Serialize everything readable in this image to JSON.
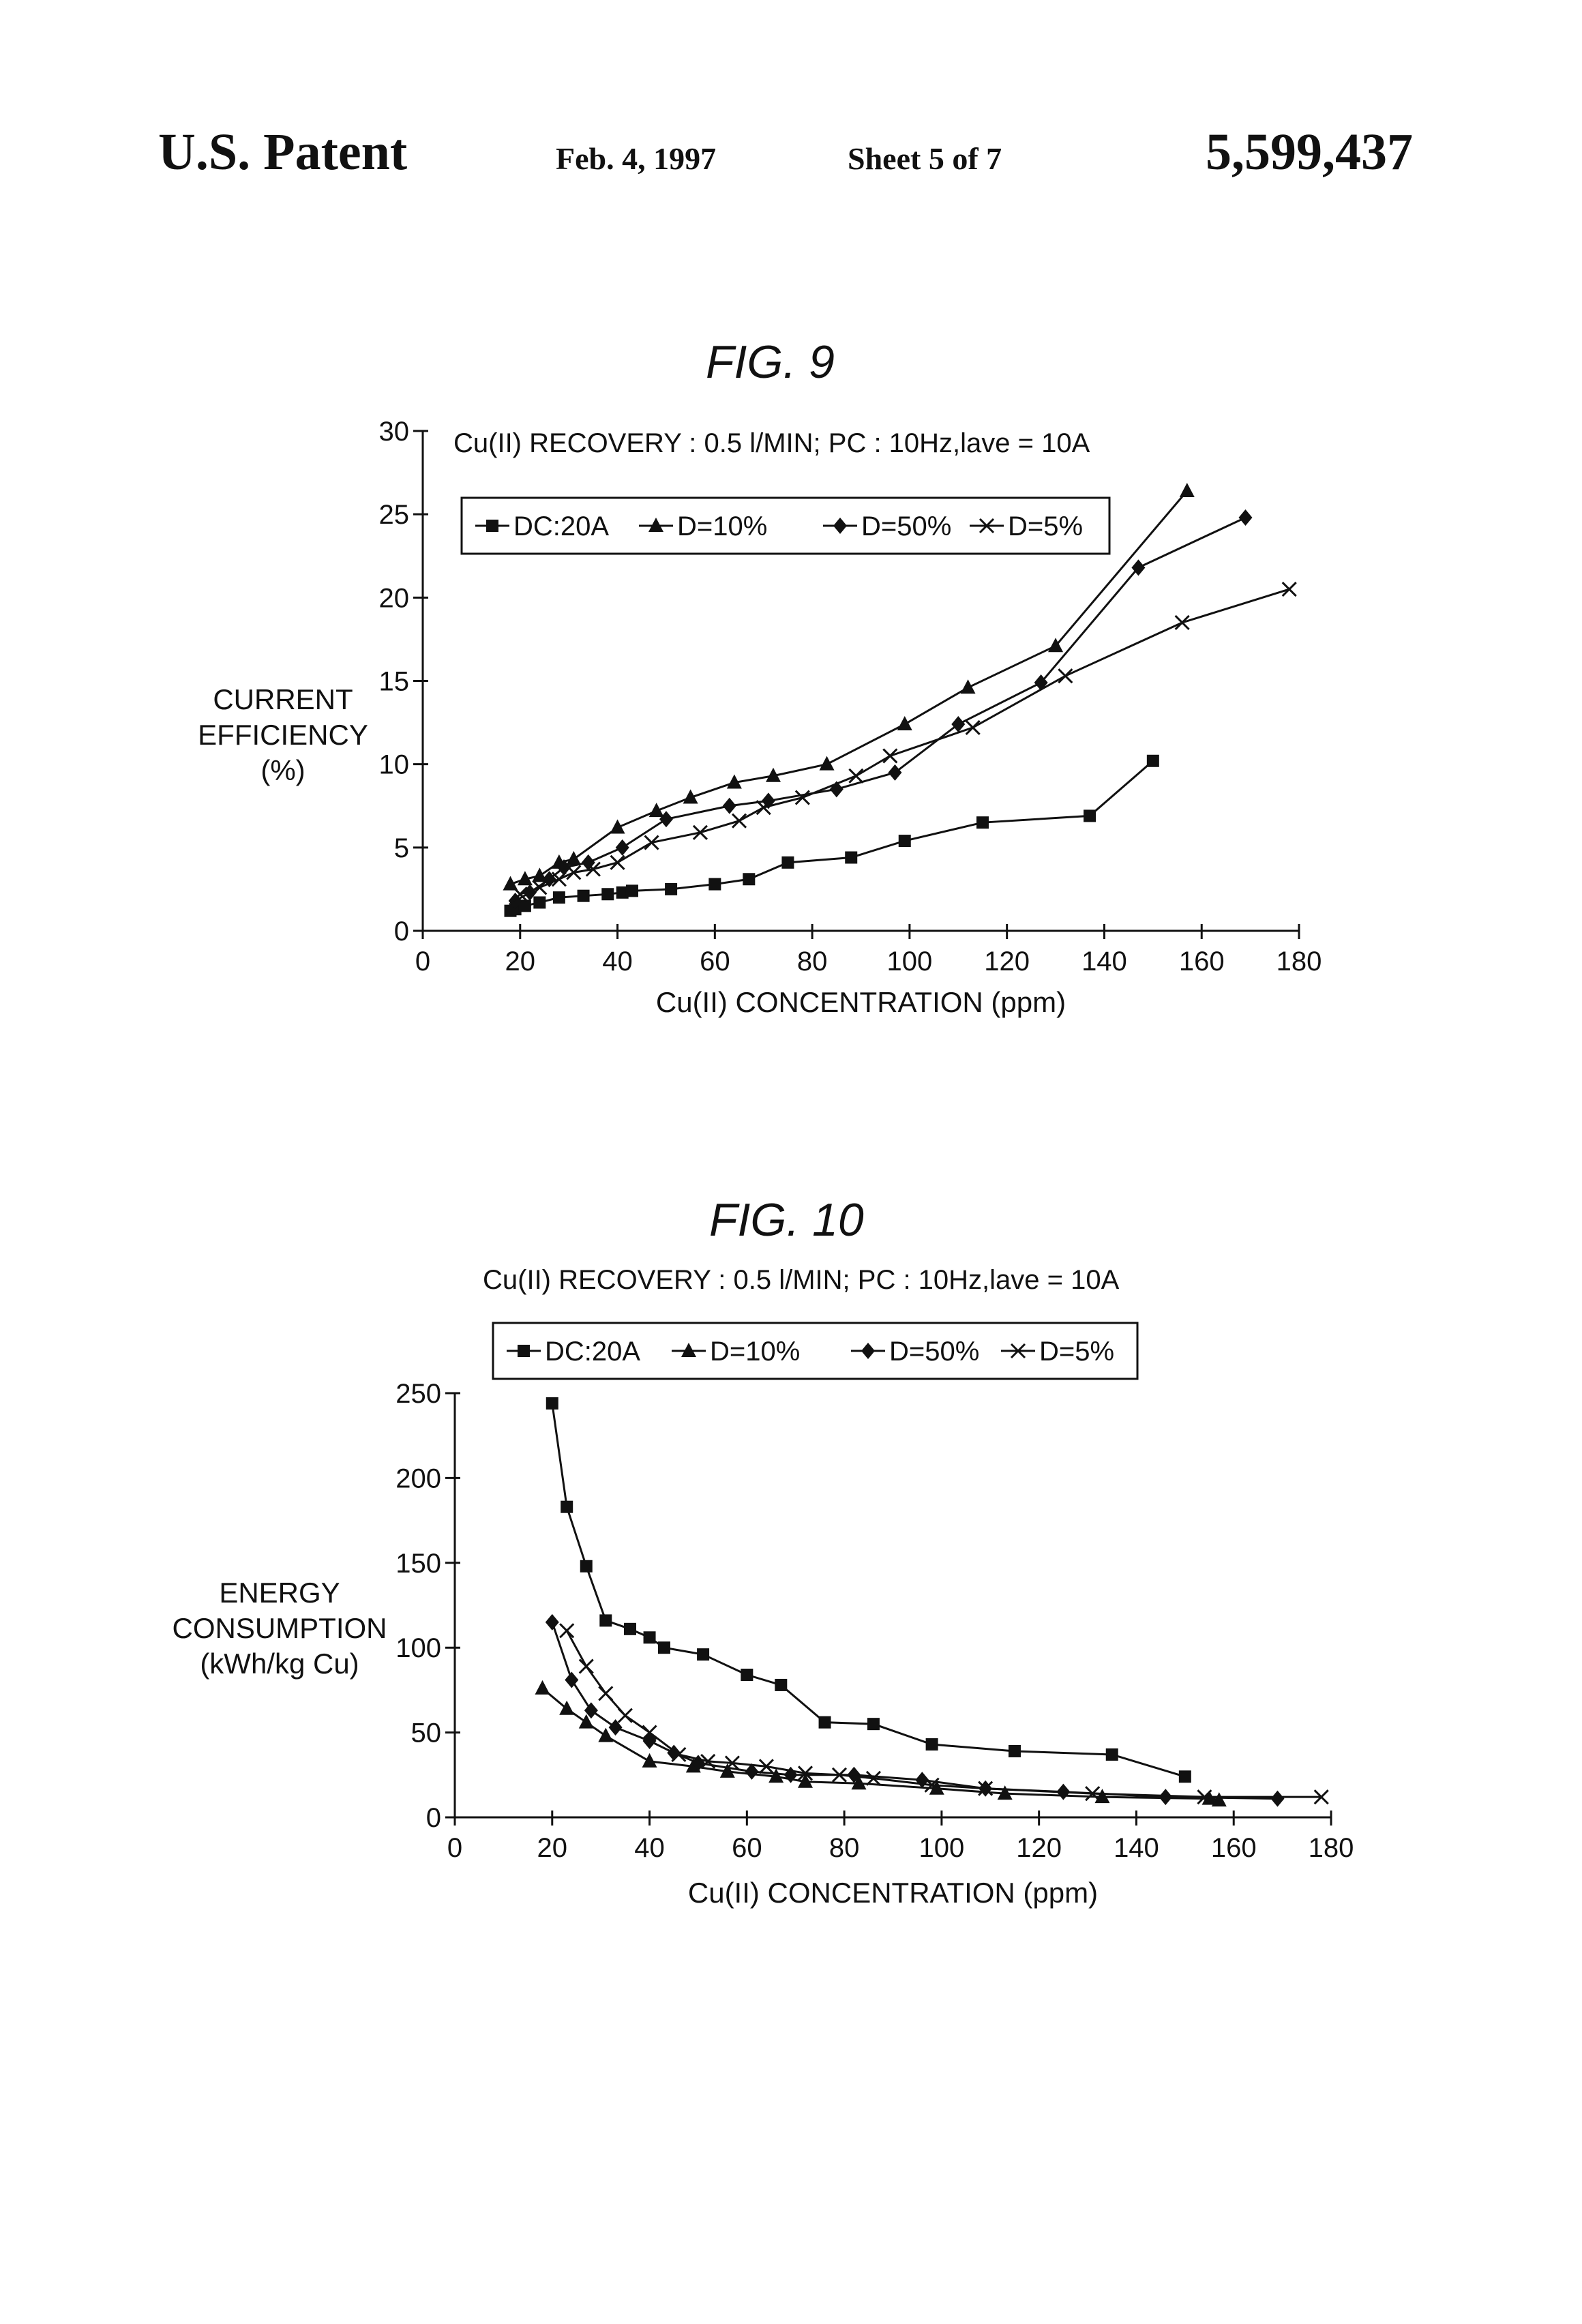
{
  "header": {
    "left": "U.S. Patent",
    "date": "Feb. 4, 1997",
    "sheet": "Sheet 5 of 7",
    "number": "5,599,437"
  },
  "figures": [
    {
      "label": "FIG. 9",
      "subtitle": "Cu(II) RECOVERY : 0.5 l/MIN; PC : 10Hz,lave = 10A",
      "ylabel_lines": [
        "CURRENT",
        "EFFICIENCY",
        "(%)"
      ],
      "xlabel": "Cu(II) CONCENTRATION (ppm)"
    },
    {
      "label": "FIG. 10",
      "subtitle": "Cu(II) RECOVERY : 0.5 l/MIN; PC : 10Hz,lave = 10A",
      "ylabel_lines": [
        "ENERGY",
        "CONSUMPTION",
        "(kWh/kg Cu)"
      ],
      "xlabel": "Cu(II) CONCENTRATION (ppm)"
    }
  ],
  "chart_data": [
    {
      "type": "line",
      "title": "FIG. 9",
      "subtitle": "Cu(II) RECOVERY : 0.5 l/MIN; PC : 10Hz,lave = 10A",
      "xlabel": "Cu(II) CONCENTRATION (ppm)",
      "ylabel": "CURRENT EFFICIENCY (%)",
      "xlim": [
        0,
        180
      ],
      "ylim": [
        0,
        30
      ],
      "xticks": [
        0,
        20,
        40,
        60,
        80,
        100,
        120,
        140,
        160,
        180
      ],
      "yticks": [
        0,
        5,
        10,
        15,
        20,
        25,
        30
      ],
      "legend": "top",
      "series": [
        {
          "name": "DC:20A",
          "marker": "square",
          "x": [
            18,
            19,
            21,
            24,
            28,
            33,
            38,
            41,
            43,
            51,
            60,
            67,
            75,
            88,
            99,
            115,
            137,
            150
          ],
          "y": [
            1.2,
            1.3,
            1.5,
            1.7,
            2,
            2.1,
            2.2,
            2.3,
            2.4,
            2.5,
            2.8,
            3.1,
            4.1,
            4.4,
            5.4,
            6.5,
            6.9,
            10.2
          ]
        },
        {
          "name": "D=10%",
          "marker": "triangle",
          "x": [
            18,
            21,
            24,
            28,
            31,
            40,
            48,
            55,
            64,
            72,
            83,
            99,
            112,
            130,
            157
          ],
          "y": [
            2.8,
            3.1,
            3.3,
            4.1,
            4.3,
            6.2,
            7.2,
            8,
            8.9,
            9.3,
            10,
            12.4,
            14.6,
            17.1,
            26.4
          ]
        },
        {
          "name": "D=50%",
          "marker": "diamond",
          "x": [
            19,
            22,
            26,
            29,
            34,
            41,
            50,
            63,
            71,
            85,
            97,
            110,
            127,
            147,
            169
          ],
          "y": [
            1.8,
            2.3,
            3.1,
            3.8,
            4.1,
            5,
            6.7,
            7.5,
            7.8,
            8.5,
            9.5,
            12.4,
            14.9,
            21.8,
            24.8
          ]
        },
        {
          "name": "D=5%",
          "marker": "x",
          "x": [
            20,
            24,
            28,
            31,
            35,
            40,
            47,
            57,
            65,
            70,
            78,
            89,
            96,
            113,
            132,
            156,
            178
          ],
          "y": [
            2.2,
            2.6,
            3.1,
            3.5,
            3.7,
            4.1,
            5.3,
            5.9,
            6.6,
            7.4,
            8,
            9.3,
            10.5,
            12.2,
            15.3,
            18.5,
            20.5
          ]
        }
      ]
    },
    {
      "type": "line",
      "title": "FIG. 10",
      "subtitle": "Cu(II) RECOVERY : 0.5 l/MIN; PC : 10Hz,lave = 10A",
      "xlabel": "Cu(II) CONCENTRATION (ppm)",
      "ylabel": "ENERGY CONSUMPTION (kWh/kg Cu)",
      "xlim": [
        0,
        180
      ],
      "ylim": [
        0,
        250
      ],
      "xticks": [
        0,
        20,
        40,
        60,
        80,
        100,
        120,
        140,
        160,
        180
      ],
      "yticks": [
        0,
        50,
        100,
        150,
        200,
        250
      ],
      "legend": "top",
      "series": [
        {
          "name": "DC:20A",
          "marker": "square",
          "x": [
            20,
            23,
            27,
            31,
            36,
            40,
            43,
            51,
            60,
            67,
            76,
            86,
            98,
            115,
            135,
            150
          ],
          "y": [
            244,
            183,
            148,
            116,
            111,
            106,
            100,
            96,
            84,
            78,
            56,
            55,
            43,
            39,
            37,
            24
          ]
        },
        {
          "name": "D=10%",
          "marker": "triangle",
          "x": [
            18,
            23,
            27,
            31,
            40,
            49,
            56,
            66,
            72,
            83,
            99,
            113,
            133,
            155,
            157
          ],
          "y": [
            76,
            64,
            56,
            48,
            33,
            30,
            27,
            24,
            21,
            20,
            17,
            14,
            12,
            11,
            10
          ]
        },
        {
          "name": "D=50%",
          "marker": "diamond",
          "x": [
            20,
            24,
            28,
            33,
            40,
            45,
            50,
            61,
            69,
            82,
            96,
            109,
            125,
            146,
            169
          ],
          "y": [
            115,
            81,
            63,
            53,
            45,
            38,
            32,
            27,
            25,
            25,
            22,
            17,
            15,
            12,
            11
          ]
        },
        {
          "name": "D=5%",
          "marker": "x",
          "x": [
            23,
            27,
            31,
            35,
            40,
            46,
            52,
            57,
            64,
            72,
            79,
            86,
            98,
            109,
            131,
            154,
            178
          ],
          "y": [
            110,
            89,
            73,
            60,
            50,
            37,
            33,
            32,
            30,
            26,
            25,
            23,
            19,
            17,
            14,
            12,
            12
          ]
        }
      ]
    }
  ]
}
